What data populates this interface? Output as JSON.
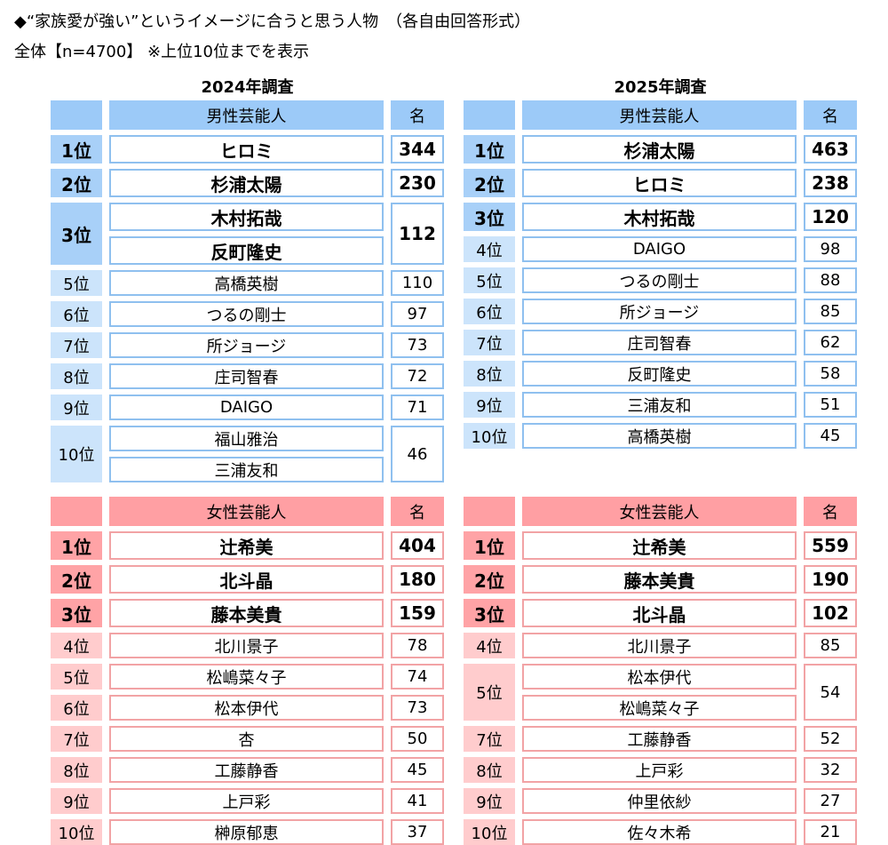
{
  "header": {
    "title": "◆“家族愛が強い”というイメージに合うと思う人物　（各自由回答形式）",
    "note": "全体【n=4700】 ※上位10位までを表示"
  },
  "columns": [
    {
      "heading": "2024年調査",
      "tables": [
        {
          "header": {
            "category": "男性芸能人",
            "unit": "名"
          },
          "rows": [
            {
              "rank": "1位",
              "names": [
                "ヒロミ"
              ],
              "count": 344
            },
            {
              "rank": "2位",
              "names": [
                "杉浦太陽"
              ],
              "count": 230
            },
            {
              "rank": "3位",
              "names": [
                "木村拓哉",
                "反町隆史"
              ],
              "count": 112
            },
            {
              "rank": "5位",
              "names": [
                "高橋英樹"
              ],
              "count": 110
            },
            {
              "rank": "6位",
              "names": [
                "つるの剛士"
              ],
              "count": 97
            },
            {
              "rank": "7位",
              "names": [
                "所ジョージ"
              ],
              "count": 73
            },
            {
              "rank": "8位",
              "names": [
                "庄司智春"
              ],
              "count": 72
            },
            {
              "rank": "9位",
              "names": [
                "DAIGO"
              ],
              "count": 71
            },
            {
              "rank": "10位",
              "names": [
                "福山雅治",
                "三浦友和"
              ],
              "count": 46
            }
          ]
        },
        {
          "header": {
            "category": "女性芸能人",
            "unit": "名"
          },
          "rows": [
            {
              "rank": "1位",
              "names": [
                "辻希美"
              ],
              "count": 404
            },
            {
              "rank": "2位",
              "names": [
                "北斗晶"
              ],
              "count": 180
            },
            {
              "rank": "3位",
              "names": [
                "藤本美貴"
              ],
              "count": 159
            },
            {
              "rank": "4位",
              "names": [
                "北川景子"
              ],
              "count": 78
            },
            {
              "rank": "5位",
              "names": [
                "松嶋菜々子"
              ],
              "count": 74
            },
            {
              "rank": "6位",
              "names": [
                "松本伊代"
              ],
              "count": 73
            },
            {
              "rank": "7位",
              "names": [
                "杏"
              ],
              "count": 50
            },
            {
              "rank": "8位",
              "names": [
                "工藤静香"
              ],
              "count": 45
            },
            {
              "rank": "9位",
              "names": [
                "上戸彩"
              ],
              "count": 41
            },
            {
              "rank": "10位",
              "names": [
                "榊原郁恵"
              ],
              "count": 37
            }
          ]
        }
      ]
    },
    {
      "heading": "2025年調査",
      "tables": [
        {
          "header": {
            "category": "男性芸能人",
            "unit": "名"
          },
          "rows": [
            {
              "rank": "1位",
              "names": [
                "杉浦太陽"
              ],
              "count": 463
            },
            {
              "rank": "2位",
              "names": [
                "ヒロミ"
              ],
              "count": 238
            },
            {
              "rank": "3位",
              "names": [
                "木村拓哉"
              ],
              "count": 120
            },
            {
              "rank": "4位",
              "names": [
                "DAIGO"
              ],
              "count": 98
            },
            {
              "rank": "5位",
              "names": [
                "つるの剛士"
              ],
              "count": 88
            },
            {
              "rank": "6位",
              "names": [
                "所ジョージ"
              ],
              "count": 85
            },
            {
              "rank": "7位",
              "names": [
                "庄司智春"
              ],
              "count": 62
            },
            {
              "rank": "8位",
              "names": [
                "反町隆史"
              ],
              "count": 58
            },
            {
              "rank": "9位",
              "names": [
                "三浦友和"
              ],
              "count": 51
            },
            {
              "rank": "10位",
              "names": [
                "高橋英樹"
              ],
              "count": 45
            }
          ]
        },
        {
          "header": {
            "category": "女性芸能人",
            "unit": "名"
          },
          "rows": [
            {
              "rank": "1位",
              "names": [
                "辻希美"
              ],
              "count": 559
            },
            {
              "rank": "2位",
              "names": [
                "藤本美貴"
              ],
              "count": 190
            },
            {
              "rank": "3位",
              "names": [
                "北斗晶"
              ],
              "count": 102
            },
            {
              "rank": "4位",
              "names": [
                "北川景子"
              ],
              "count": 85
            },
            {
              "rank": "5位",
              "names": [
                "松本伊代",
                "松嶋菜々子"
              ],
              "count": 54
            },
            {
              "rank": "7位",
              "names": [
                "工藤静香"
              ],
              "count": 52
            },
            {
              "rank": "8位",
              "names": [
                "上戸彩"
              ],
              "count": 32
            },
            {
              "rank": "9位",
              "names": [
                "仲里依紗"
              ],
              "count": 27
            },
            {
              "rank": "10位",
              "names": [
                "佐々木希"
              ],
              "count": 21
            }
          ]
        }
      ]
    }
  ]
}
